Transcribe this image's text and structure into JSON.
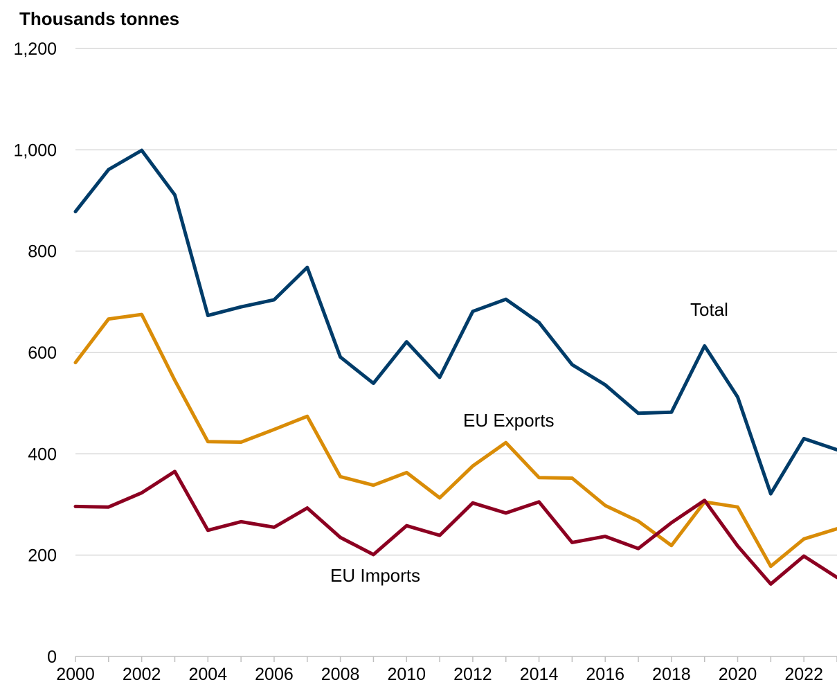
{
  "chart_data": {
    "type": "line",
    "ylabel": "Thousands tonnes",
    "xlim": [
      2000,
      2023
    ],
    "ylim": [
      0,
      1200
    ],
    "y_ticks": [
      "0",
      "200",
      "400",
      "600",
      "800",
      "1,000",
      "1,200"
    ],
    "y_tick_values": [
      0,
      200,
      400,
      600,
      800,
      1000,
      1200
    ],
    "x_ticks": [
      "2000",
      "2002",
      "2004",
      "2006",
      "2008",
      "2010",
      "2012",
      "2014",
      "2016",
      "2018",
      "2020",
      "2022"
    ],
    "x_tick_values": [
      2000,
      2002,
      2004,
      2006,
      2008,
      2010,
      2012,
      2014,
      2016,
      2018,
      2020,
      2022
    ],
    "grid": true,
    "legend": "none",
    "x": [
      2000,
      2001,
      2002,
      2003,
      2004,
      2005,
      2006,
      2007,
      2008,
      2009,
      2010,
      2011,
      2012,
      2013,
      2014,
      2015,
      2016,
      2017,
      2018,
      2019,
      2020,
      2021,
      2022,
      2023
    ],
    "series": [
      {
        "name": "Total",
        "color": "#003c69",
        "values": [
          878,
          961,
          999,
          911,
          673,
          690,
          704,
          768,
          591,
          539,
          621,
          551,
          681,
          705,
          659,
          576,
          536,
          480,
          482,
          613,
          512,
          321,
          430,
          408
        ]
      },
      {
        "name": "EU Exports",
        "color": "#d98c07",
        "values": [
          580,
          666,
          675,
          545,
          424,
          423,
          448,
          474,
          355,
          338,
          363,
          313,
          376,
          422,
          353,
          352,
          298,
          267,
          219,
          305,
          295,
          178,
          232,
          252
        ]
      },
      {
        "name": "EU Imports",
        "color": "#8c0021",
        "values": [
          296,
          295,
          323,
          365,
          249,
          266,
          255,
          293,
          235,
          201,
          258,
          239,
          303,
          283,
          305,
          225,
          237,
          213,
          264,
          308,
          218,
          143,
          198,
          156
        ]
      }
    ],
    "annotations": [
      {
        "text": "Total",
        "series": "Total"
      },
      {
        "text": "EU Exports",
        "series": "EU Exports"
      },
      {
        "text": "EU Imports",
        "series": "EU Imports"
      }
    ]
  }
}
